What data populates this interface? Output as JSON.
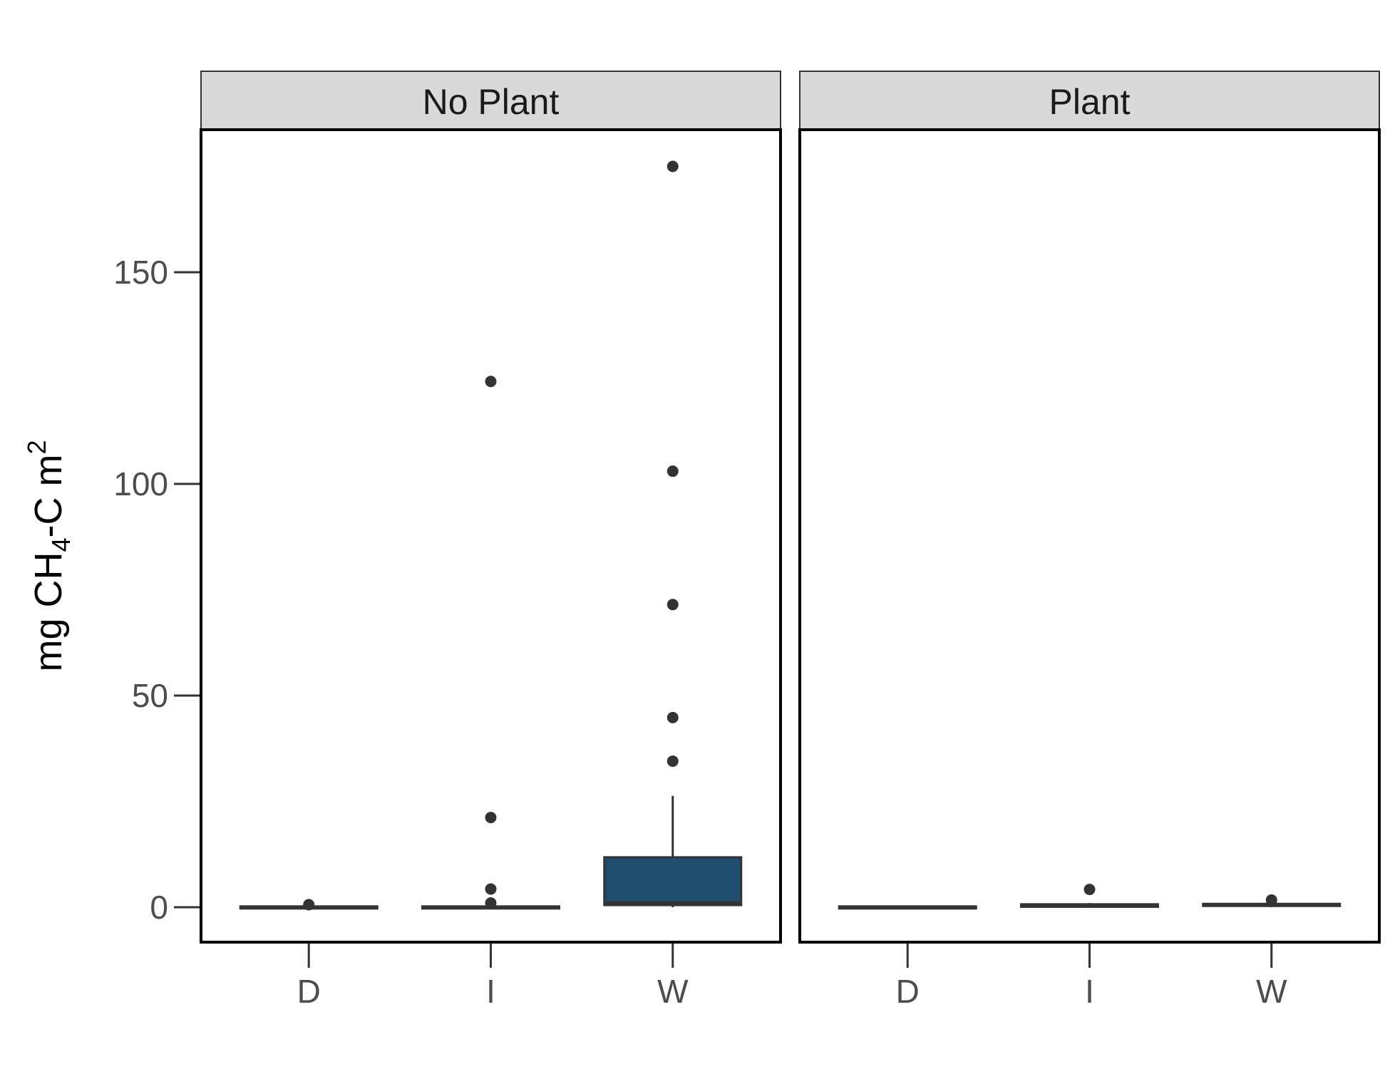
{
  "chart_data": {
    "type": "boxplot",
    "ylabel": {
      "main": "mg CH",
      "sub": "4",
      "rest": "-C m",
      "sup": "2"
    },
    "yticks": [
      0,
      50,
      100,
      150
    ],
    "ylim": [
      -8,
      185
    ],
    "categories": [
      "D",
      "I",
      "W"
    ],
    "colors": {
      "box_fill": "#1f4e6e",
      "outline": "#333333",
      "strip_bg": "#d9d9d9",
      "panel_border": "#000000"
    },
    "facets": [
      {
        "name": "No Plant",
        "boxes": [
          {
            "category": "D",
            "lower_whisker": 0,
            "q1": 0,
            "median": 0,
            "q3": 0.2,
            "upper_whisker": 0.3,
            "outliers": [
              0.6
            ]
          },
          {
            "category": "I",
            "lower_whisker": 0,
            "q1": 0,
            "median": 0,
            "q3": 0.2,
            "upper_whisker": 0.4,
            "outliers": [
              1,
              4.3,
              21.2,
              124.2
            ]
          },
          {
            "category": "W",
            "lower_whisker": 0,
            "q1": 0.5,
            "median": 1,
            "q3": 11.8,
            "upper_whisker": 26.3,
            "outliers": [
              34.5,
              44.8,
              71.5,
              103,
              175
            ]
          }
        ]
      },
      {
        "name": "Plant",
        "boxes": [
          {
            "category": "D",
            "lower_whisker": 0,
            "q1": 0,
            "median": 0,
            "q3": 0.2,
            "upper_whisker": 0.3,
            "outliers": []
          },
          {
            "category": "I",
            "lower_whisker": 0,
            "q1": 0.1,
            "median": 0.3,
            "q3": 0.7,
            "upper_whisker": 1,
            "outliers": [
              4.2
            ]
          },
          {
            "category": "W",
            "lower_whisker": 0,
            "q1": 0.3,
            "median": 0.5,
            "q3": 0.8,
            "upper_whisker": 1.1,
            "outliers": [
              1.7
            ]
          }
        ]
      }
    ]
  }
}
